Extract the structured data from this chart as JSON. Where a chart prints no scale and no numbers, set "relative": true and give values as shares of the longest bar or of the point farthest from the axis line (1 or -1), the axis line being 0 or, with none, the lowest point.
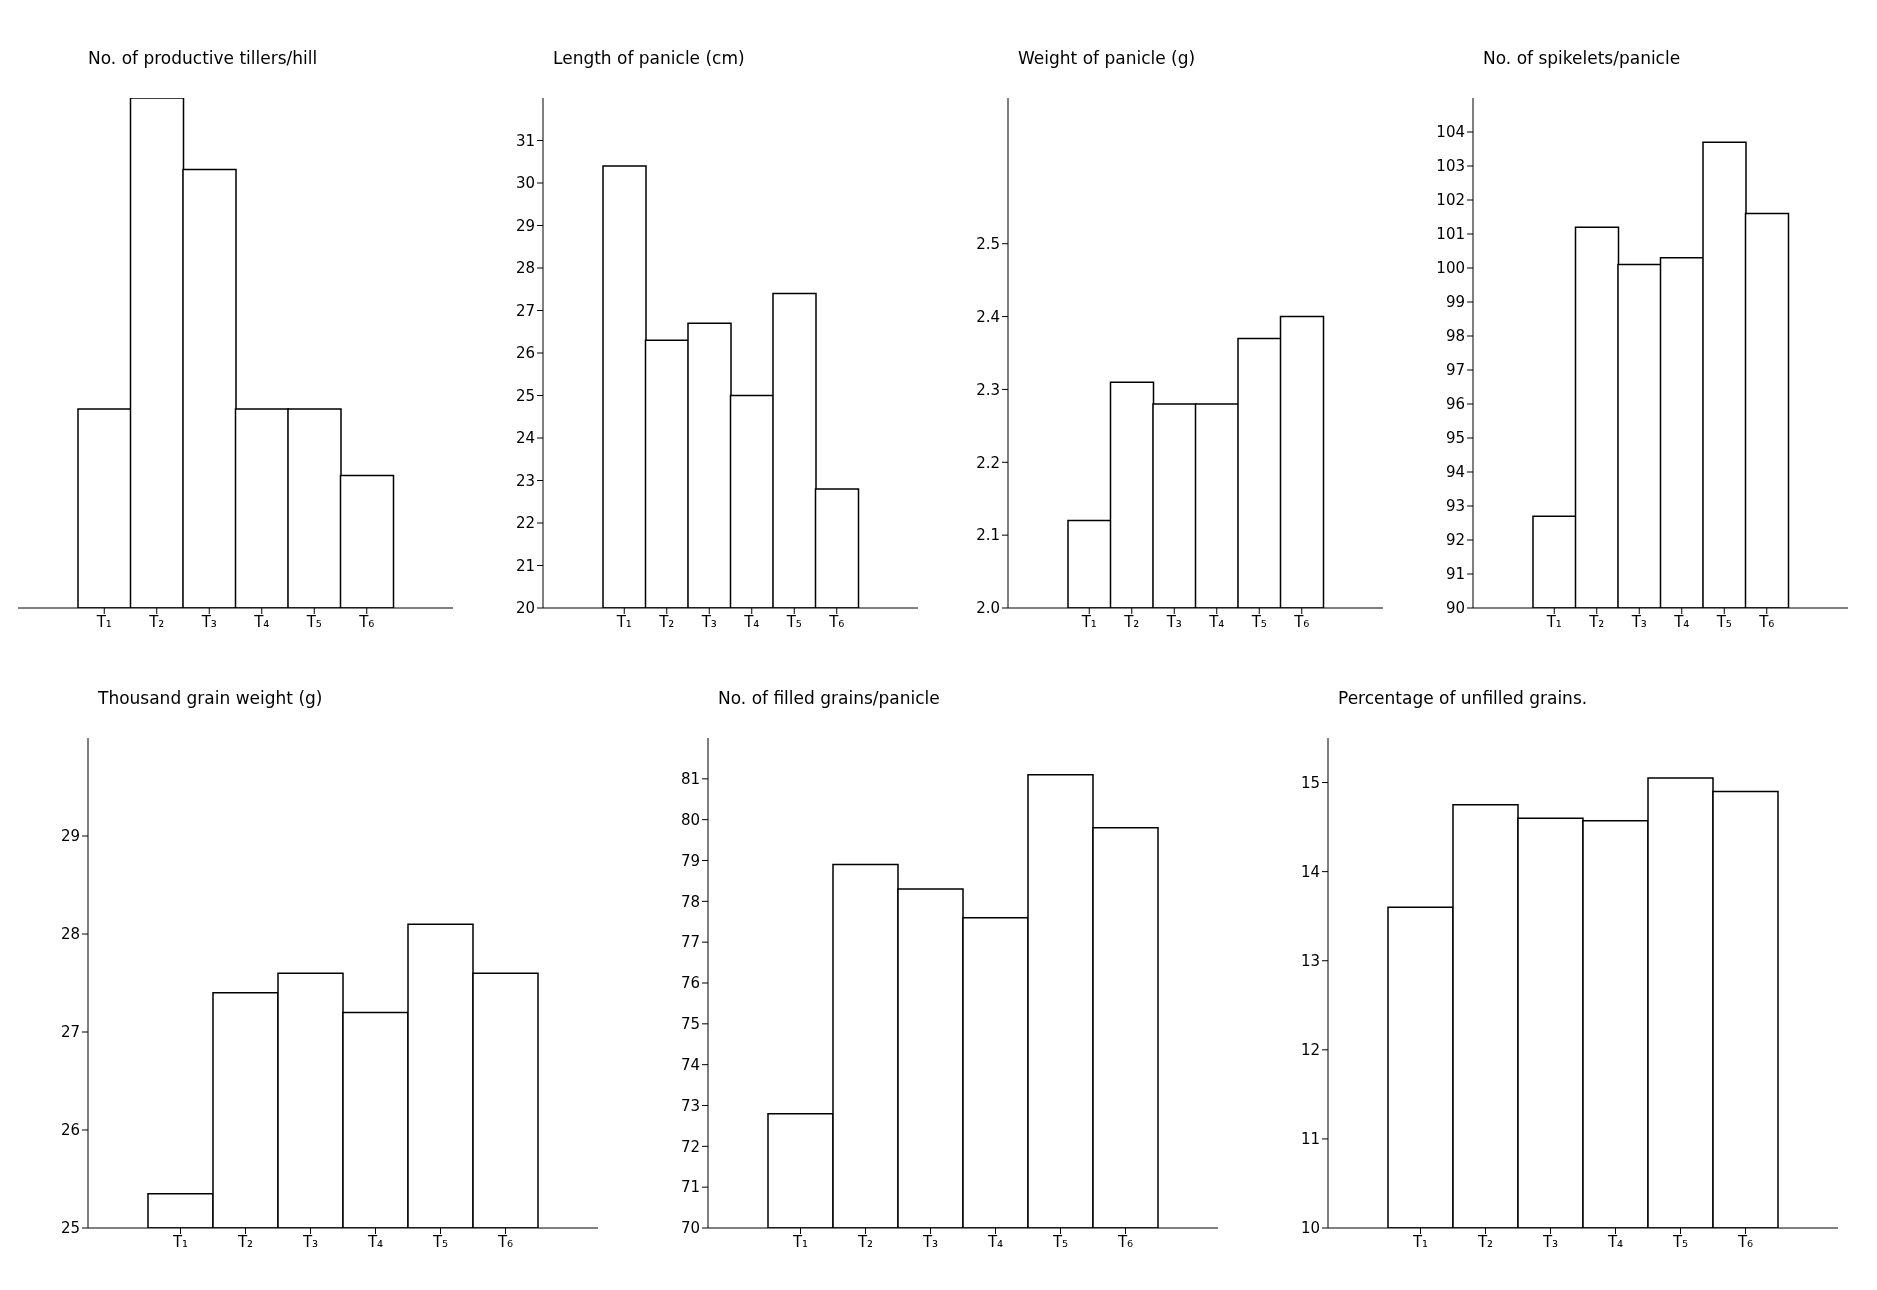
{
  "chart_data": [
    {
      "type": "bar",
      "title": "No. of productive tillers/hill",
      "categories": [
        "T₁",
        "T₂",
        "T₃",
        "T₄",
        "T₅",
        "T₆"
      ],
      "values": [
        0.39,
        1,
        0.86,
        0.39,
        0.39,
        0.26
      ],
      "color": "#ffffff",
      "relative": true
    },
    {
      "type": "bar",
      "title": "Length of panicle (cm)",
      "categories": [
        "T₁",
        "T₂",
        "T₃",
        "T₄",
        "T₅",
        "T₆"
      ],
      "values": [
        30.4,
        26.3,
        26.7,
        25.0,
        27.4,
        22.8
      ],
      "color": "#ffffff",
      "ylim": [
        20,
        32
      ],
      "yticks": [
        20,
        21,
        22,
        23,
        24,
        25,
        26,
        27,
        28,
        29,
        30,
        31
      ]
    },
    {
      "type": "bar",
      "title": "Weight of panicle (g)",
      "categories": [
        "T₁",
        "T₂",
        "T₃",
        "T₄",
        "T₅",
        "T₆"
      ],
      "values": [
        2.12,
        2.31,
        2.28,
        2.28,
        2.37,
        2.4
      ],
      "color": "#ffffff",
      "ylim": [
        2.0,
        2.7
      ],
      "yticks": [
        {
          "value": 2,
          "label": "2.0"
        },
        2.1,
        2.2,
        2.3,
        2.4,
        2.5
      ]
    },
    {
      "type": "bar",
      "title": "No. of spikelets/panicle",
      "categories": [
        "T₁",
        "T₂",
        "T₃",
        "T₄",
        "T₅",
        "T₆"
      ],
      "values": [
        92.7,
        101.2,
        100.1,
        100.3,
        103.7,
        101.6
      ],
      "color": "#ffffff",
      "ylim": [
        90,
        105
      ],
      "yticks": [
        90,
        91,
        92,
        93,
        94,
        95,
        96,
        97,
        98,
        99,
        100,
        101,
        102,
        103,
        104
      ]
    },
    {
      "type": "bar",
      "title": "Thousand grain weight (g)",
      "categories": [
        "T₁",
        "T₂",
        "T₃",
        "T₄",
        "T₅",
        "T₆"
      ],
      "values": [
        25.35,
        27.4,
        27.6,
        27.2,
        28.1,
        27.6
      ],
      "color": "#ffffff",
      "ylim": [
        25,
        30
      ],
      "yticks": [
        25,
        26,
        27,
        28,
        29
      ]
    },
    {
      "type": "bar",
      "title": "No. of filled grains/panicle",
      "categories": [
        "T₁",
        "T₂",
        "T₃",
        "T₄",
        "T₅",
        "T₆"
      ],
      "values": [
        72.8,
        78.9,
        78.3,
        77.6,
        81.1,
        79.8
      ],
      "color": "#ffffff",
      "ylim": [
        70,
        82
      ],
      "yticks": [
        70,
        71,
        72,
        73,
        74,
        75,
        76,
        77,
        78,
        79,
        80,
        81
      ]
    },
    {
      "type": "bar",
      "title": "Percentage of unfilled grains.",
      "categories": [
        "T₁",
        "T₂",
        "T₃",
        "T₄",
        "T₅",
        "T₆"
      ],
      "values": [
        13.6,
        14.75,
        14.6,
        14.57,
        15.05,
        14.9
      ],
      "color": "#ffffff",
      "ylim": [
        10,
        15.5
      ],
      "yticks": [
        10,
        11,
        12,
        13,
        14,
        15
      ]
    }
  ]
}
